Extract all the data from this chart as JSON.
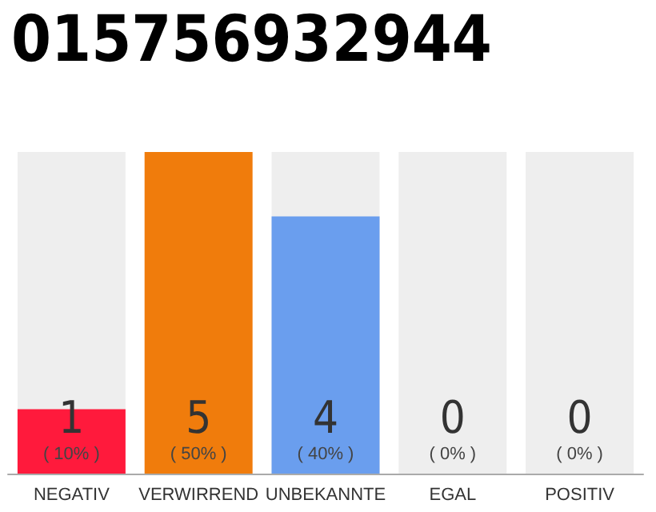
{
  "chart_data": {
    "type": "bar",
    "title": "015756932944",
    "categories": [
      "NEGATIV",
      "VERWIRREND",
      "UNBEKANNTE",
      "EGAL",
      "POSITIV"
    ],
    "values": [
      1,
      5,
      4,
      0,
      0
    ],
    "colors": [
      "#ff1a3c",
      "#f07c0c",
      "#6a9eee",
      "#cccccc",
      "#cccccc"
    ],
    "value_labels": [
      "1\n( 10% )",
      "5\n( 50% )",
      "4\n( 40% )",
      "0\n( 0% )",
      "0\n( 0% )"
    ],
    "bands": [
      {
        "axis": "x",
        "from": "NEGATIV",
        "to": "NEGATIV",
        "color": "#eeeeee"
      },
      {
        "axis": "x",
        "from": "UNBEKANNTE",
        "to": "UNBEKANNTE",
        "color": "#eeeeee"
      },
      {
        "axis": "x",
        "from": "EGAL",
        "to": "EGAL",
        "color": "#eeeeee"
      },
      {
        "axis": "x",
        "from": "POSITIV",
        "to": "POSITIV",
        "color": "#eeeeee"
      }
    ],
    "ylim": [
      0,
      5
    ],
    "tick_labels": "x",
    "grid": false
  }
}
